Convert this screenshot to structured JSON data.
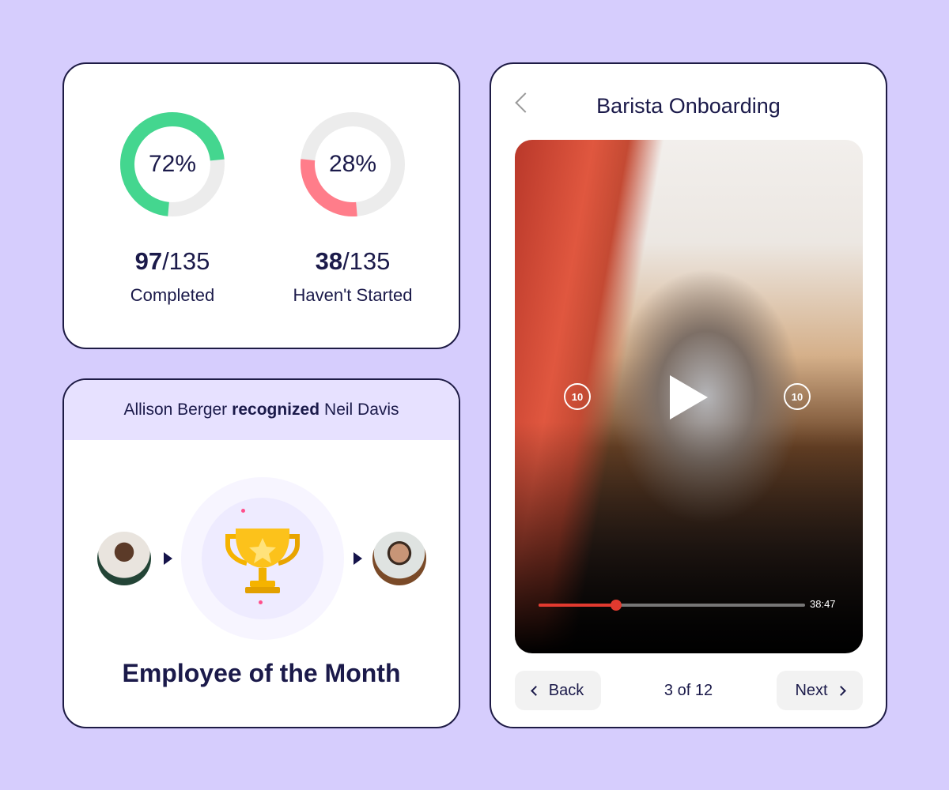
{
  "stats": [
    {
      "percent": "72%",
      "value": 72,
      "done": "97",
      "total": "/135",
      "label": "Completed",
      "color": "#44d68f"
    },
    {
      "percent": "28%",
      "value": 28,
      "done": "38",
      "total": "/135",
      "label": "Haven't Started",
      "color": "#ff7d8a"
    }
  ],
  "recognition": {
    "giver": "Allison Berger",
    "verb": "recognized",
    "receiver": "Neil Davis",
    "award": "Employee of the Month",
    "icon": "trophy-icon"
  },
  "player": {
    "title": "Barista Onboarding",
    "duration": "38:47",
    "progress": 0.29,
    "rewind": "10",
    "forward": "10",
    "back_label": "Back",
    "next_label": "Next",
    "pager": "3 of 12",
    "accent": "#e23a2f"
  }
}
